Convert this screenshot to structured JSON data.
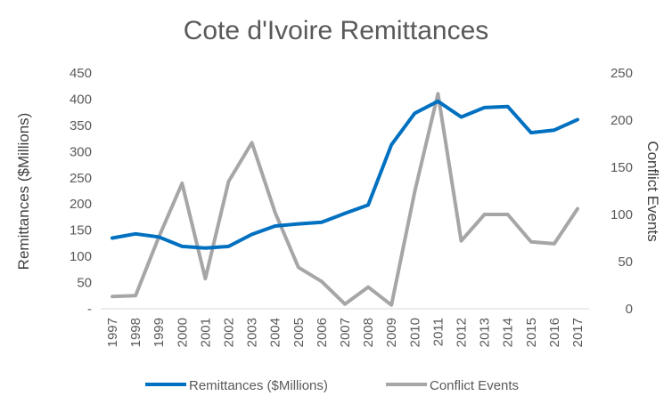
{
  "chart_data": {
    "type": "line",
    "title": "Cote d'Ivoire Remittances",
    "xlabel": "",
    "ylabel": "Remittances ($Millions)",
    "y2label": "Conflict Events",
    "categories": [
      "1997",
      "1998",
      "1999",
      "2000",
      "2001",
      "2002",
      "2003",
      "2004",
      "2005",
      "2006",
      "2007",
      "2008",
      "2009",
      "2010",
      "2011",
      "2012",
      "2013",
      "2014",
      "2015",
      "2016",
      "2017"
    ],
    "ylim": [
      0,
      450
    ],
    "yticks": [
      "-",
      "50",
      "100",
      "150",
      "200",
      "250",
      "300",
      "350",
      "400",
      "450"
    ],
    "y2lim": [
      0,
      250
    ],
    "y2ticks": [
      "0",
      "50",
      "100",
      "150",
      "200",
      "250"
    ],
    "grid": false,
    "legend": "bottom",
    "series": [
      {
        "name": "Remittances ($Millions)",
        "axis": "left",
        "color": "#0070C0",
        "values": [
          135,
          143,
          137,
          119,
          116,
          119,
          142,
          158,
          162,
          165,
          182,
          198,
          313,
          373,
          396,
          366,
          384,
          386,
          336,
          341,
          361
        ]
      },
      {
        "name": "Conflict Events",
        "axis": "right",
        "color": "#A6A6A6",
        "values": [
          13,
          14,
          76,
          133,
          32,
          135,
          176,
          102,
          44,
          29,
          5,
          23,
          4,
          124,
          228,
          72,
          100,
          100,
          71,
          69,
          106
        ]
      }
    ]
  }
}
